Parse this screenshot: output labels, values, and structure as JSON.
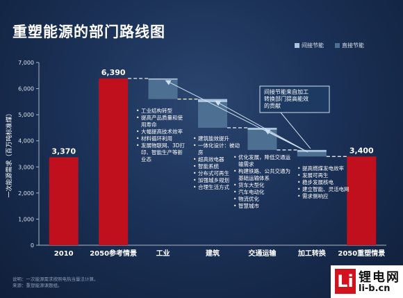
{
  "title": "重塑能源的部门路线图",
  "note": {
    "line1": "说明：一次能源需求按照电热当量法计算。",
    "line2": "来源：重塑能源课题组。"
  },
  "logo": {
    "mark": "Li",
    "name": "锂电网",
    "url": "li-b.cn"
  },
  "colors": {
    "bar": "#c0101e",
    "step_top": "#a9c4dc",
    "step_body": "#4d6f92",
    "background": "#1b3157"
  },
  "chart_data": {
    "type": "bar",
    "ylabel": "一次能源需求（百万吨标准煤）",
    "ylim": [
      0,
      7000
    ],
    "yticks": [
      "0",
      "1,000",
      "2,000",
      "3,000",
      "4,000",
      "5,000",
      "6,000",
      "7,000"
    ],
    "categories": [
      "2010",
      "2050参考情景",
      "工业",
      "建筑",
      "交通运输",
      "加工转换",
      "2050重塑情景"
    ],
    "legend": [
      {
        "name": "间接节能",
        "color": "#a9c4dc"
      },
      {
        "name": "直接节能",
        "color": "#4d6f92"
      }
    ],
    "totals": [
      {
        "category": "2010",
        "value": 3370,
        "label": "3,370"
      },
      {
        "category": "2050参考情景",
        "value": 6390,
        "label": "6,390"
      },
      {
        "category": "2050重塑情景",
        "value": 3400,
        "label": "3,400"
      }
    ],
    "steps": [
      {
        "category": "工业",
        "from": 6390,
        "to": 5600,
        "indirect": 50
      },
      {
        "category": "建筑",
        "from": 5600,
        "to": 4500,
        "indirect": 120
      },
      {
        "category": "交通运输",
        "from": 4500,
        "to": 3650,
        "indirect": 80
      },
      {
        "category": "加工转换",
        "from": 3650,
        "to": 3400,
        "indirect": 80
      }
    ],
    "annotation": "间接节能来自加工转换部门提高能效的贡献",
    "bullets": {
      "industry": [
        "工业结构转型",
        "提高产品质量和使用寿命",
        "大幅提高技术效率",
        "材料循环利用",
        "发展物联网、3D打印、智能生产等新业态"
      ],
      "buildings": [
        "建筑能效提升",
        "一体化设计：被动房",
        "超高效电器",
        "智能系统",
        "分布式可再生",
        "加强城乡规划",
        "合理生活方式"
      ],
      "transport": [
        "优化发展，降低交通运输需求",
        "构建铁路、公共交通为基础运输体系",
        "货车大型化",
        "汽车电动化",
        "物流优化",
        "智慧城市"
      ],
      "conversion": [
        "提高燃煤发电效率",
        "发展可再生",
        "稳步发展核电",
        "建立智能、灵活电网",
        "需求侧响应"
      ]
    }
  }
}
